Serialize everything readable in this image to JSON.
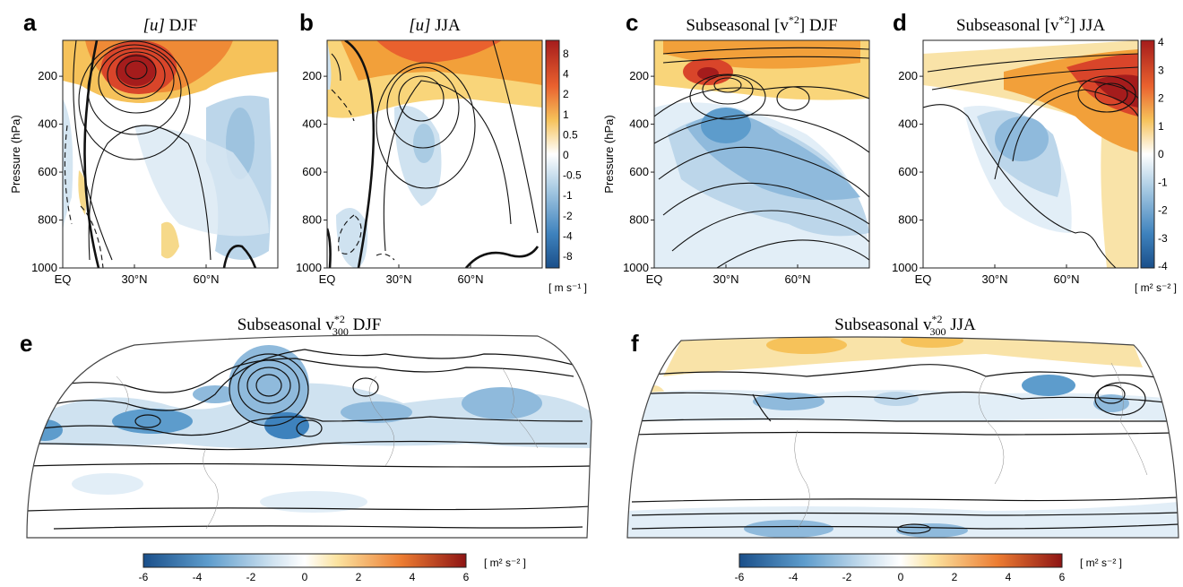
{
  "chart_data": [
    {
      "panel": "a",
      "type": "heatmap",
      "title": "[u] DJF",
      "ylabel": "Pressure (hPa)",
      "x_ticks": [
        "EQ",
        "30°N",
        "60°N"
      ],
      "y_ticks": [
        "200",
        "400",
        "600",
        "800",
        "1000"
      ],
      "ylim": [
        1000,
        50
      ],
      "xlim": [
        0,
        90
      ]
    },
    {
      "panel": "b",
      "type": "heatmap",
      "title": "[u] JJA",
      "x_ticks": [
        "EQ",
        "30°N",
        "60°N"
      ],
      "y_ticks": [
        "200",
        "400",
        "600",
        "800",
        "1000"
      ],
      "ylim": [
        1000,
        50
      ],
      "xlim": [
        0,
        90
      ],
      "colorbar": {
        "ticks": [
          "8",
          "4",
          "2",
          "1",
          "0.5",
          "0",
          "-0.5",
          "-1",
          "-2",
          "-4",
          "-8"
        ],
        "unit": "[ m s⁻¹ ]"
      }
    },
    {
      "panel": "c",
      "type": "heatmap",
      "title": "Subseasonal [v*2] DJF",
      "ylabel": "Pressure (hPa)",
      "x_ticks": [
        "EQ",
        "30°N",
        "60°N"
      ],
      "y_ticks": [
        "200",
        "400",
        "600",
        "800",
        "1000"
      ],
      "ylim": [
        1000,
        50
      ],
      "xlim": [
        0,
        90
      ]
    },
    {
      "panel": "d",
      "type": "heatmap",
      "title": "Subseasonal [v*2] JJA",
      "x_ticks": [
        "EQ",
        "30°N",
        "60°N"
      ],
      "y_ticks": [
        "200",
        "400",
        "600",
        "800",
        "1000"
      ],
      "ylim": [
        1000,
        50
      ],
      "xlim": [
        0,
        90
      ],
      "colorbar": {
        "ticks": [
          "4",
          "3",
          "2",
          "1",
          "0",
          "-1",
          "-2",
          "-3",
          "-4"
        ],
        "unit": "[ m² s⁻² ]"
      }
    },
    {
      "panel": "e",
      "type": "heatmap",
      "title": "Subseasonal v*2 300 DJF",
      "colorbar": {
        "ticks": [
          "-6",
          "-4",
          "-2",
          "0",
          "2",
          "4",
          "6"
        ],
        "unit": "[ m² s⁻² ]"
      }
    },
    {
      "panel": "f",
      "type": "heatmap",
      "title": "Subseasonal v*2 300 JJA",
      "colorbar": {
        "ticks": [
          "-6",
          "-4",
          "-2",
          "0",
          "2",
          "4",
          "6"
        ],
        "unit": "[ m² s⁻² ]"
      }
    }
  ],
  "labels": {
    "a": "a",
    "b": "b",
    "c": "c",
    "d": "d",
    "e": "e",
    "f": "f",
    "title_a_pre": "[u]",
    "title_a_post": " DJF",
    "title_b_pre": "[u]",
    "title_b_post": " JJA",
    "title_c_pre": "Subseasonal [v",
    "title_c_sup": "*2",
    "title_c_post": "] DJF",
    "title_d_pre": "Subseasonal [v",
    "title_d_sup": "*2",
    "title_d_post": "] JJA",
    "title_e_pre": "Subseasonal v",
    "title_e_sup": "*2",
    "title_e_sub": "300",
    "title_e_post": " DJF",
    "title_f_pre": "Subseasonal v",
    "title_f_sup": "*2",
    "title_f_sub": "300",
    "title_f_post": " JJA",
    "ylabel": "Pressure (hPa)",
    "unit_ms": "[ m s⁻¹ ]",
    "unit_m2s2": "[ m² s⁻² ]"
  },
  "colors": {
    "deep_blue": "#1f5fa0",
    "mid_blue": "#7fb0d6",
    "light_blue": "#cfe2f0",
    "pale_yellow": "#fbe9b0",
    "orange": "#f2a03a",
    "red": "#c0281e",
    "dark_red": "#8e1414"
  }
}
